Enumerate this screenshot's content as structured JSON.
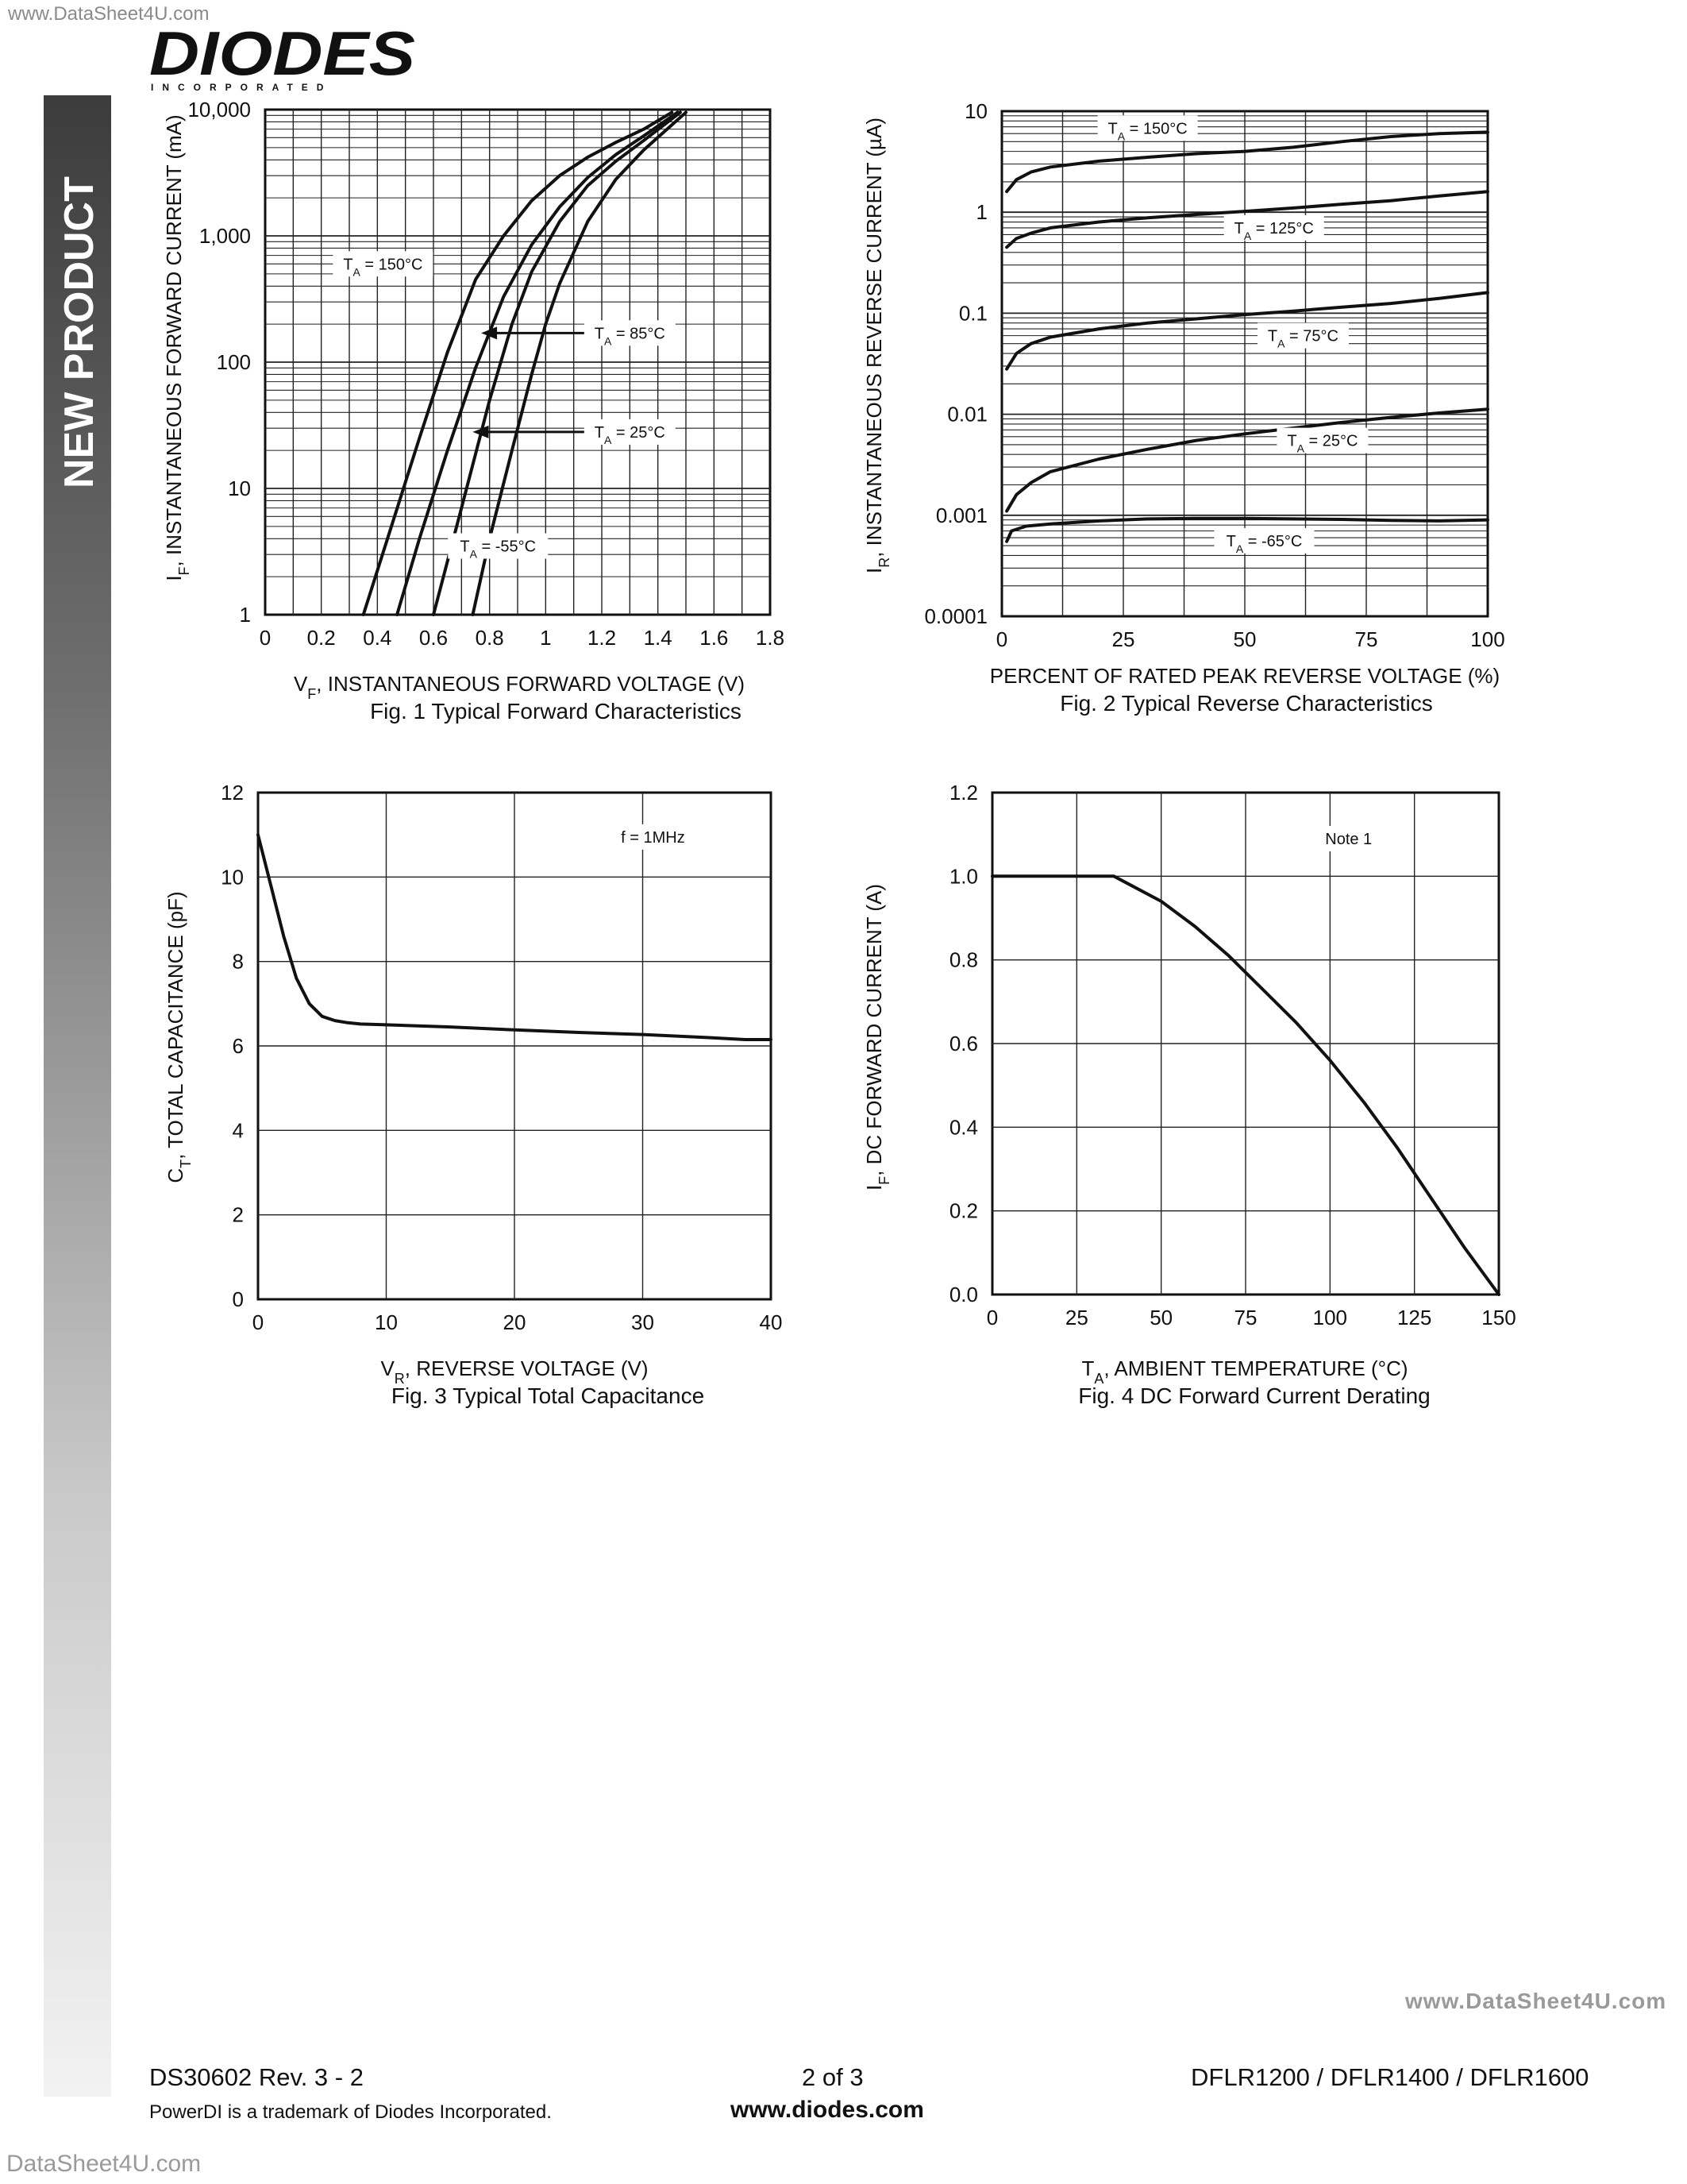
{
  "watermark_top": "www.DataSheet4U.com",
  "logo": {
    "name": "DIODES",
    "sub": "INCORPORATED"
  },
  "sidebar": {
    "label": "NEW PRODUCT"
  },
  "chart_data": [
    {
      "type": "line",
      "ylog": true,
      "xlabel_main": "V",
      "xlabel_sub": "F",
      "xlabel_rest": ", INSTANTANEOUS FORWARD VOLTAGE (V)",
      "ylabel_main": "I",
      "ylabel_sub": "F",
      "ylabel_rest": ", INSTANTANEOUS FORWARD CURRENT (mA)",
      "caption": "Fig. 1  Typical Forward Characteristics",
      "xlim": [
        0,
        1.8
      ],
      "ylim": [
        1,
        10000
      ],
      "xticks": [
        0,
        0.2,
        0.4,
        0.6,
        0.8,
        1,
        1.2,
        1.4,
        1.6,
        1.8
      ],
      "xticklabels": [
        "0",
        "0.2",
        "0.4",
        "0.6",
        "0.8",
        "1",
        "1.2",
        "1.4",
        "1.6",
        "1.8"
      ],
      "yticks": [
        1,
        10,
        100,
        1000,
        10000
      ],
      "yticklabels": [
        "1",
        "10",
        "100",
        "1,000",
        "10,000"
      ],
      "series": [
        {
          "name": "T = 150°C",
          "x": [
            0.35,
            0.45,
            0.55,
            0.65,
            0.75,
            0.85,
            0.95,
            1.05,
            1.15,
            1.25,
            1.35,
            1.45
          ],
          "y": [
            1,
            5,
            25,
            120,
            450,
            1000,
            1900,
            3000,
            4200,
            5500,
            7000,
            9500
          ]
        },
        {
          "name": "T = 85°C",
          "x": [
            0.47,
            0.55,
            0.65,
            0.75,
            0.85,
            0.95,
            1.05,
            1.15,
            1.25,
            1.35,
            1.47
          ],
          "y": [
            1,
            4,
            20,
            90,
            330,
            850,
            1700,
            2900,
            4400,
            6200,
            9500
          ]
        },
        {
          "name": "T = 25°C",
          "x": [
            0.6,
            0.7,
            0.8,
            0.88,
            0.95,
            1.05,
            1.15,
            1.25,
            1.35,
            1.48
          ],
          "y": [
            1,
            7,
            50,
            200,
            520,
            1300,
            2500,
            3900,
            5700,
            9500
          ]
        },
        {
          "name": "T = -55°C",
          "x": [
            0.74,
            0.8,
            0.88,
            0.95,
            1.0,
            1.05,
            1.15,
            1.25,
            1.35,
            1.5
          ],
          "y": [
            1,
            4,
            20,
            80,
            200,
            420,
            1300,
            2800,
            4800,
            9500
          ]
        }
      ],
      "annotations": [
        {
          "label_main": "T",
          "label_sub": "A",
          "label_rest": " = 150°C",
          "x": 0.42,
          "y": 600
        },
        {
          "label_main": "T",
          "label_sub": "A",
          "label_rest": " = 85°C",
          "x": 1.3,
          "y": 170
        },
        {
          "label_main": "T",
          "label_sub": "A",
          "label_rest": " = 25°C",
          "x": 1.3,
          "y": 28
        },
        {
          "label_main": "T",
          "label_sub": "A",
          "label_rest": " = -55°C",
          "x": 0.83,
          "y": 3.5
        }
      ],
      "arrows": [
        {
          "from": [
            1.37,
            170
          ],
          "to": [
            0.77,
            170
          ]
        },
        {
          "from": [
            1.37,
            28
          ],
          "to": [
            0.74,
            28
          ]
        }
      ]
    },
    {
      "type": "line",
      "ylog": true,
      "xlabel_main": "PERCENT OF RATED PEAK REVERSE VOLTAGE (%)",
      "xlabel_sub": "",
      "xlabel_rest": "",
      "ylabel_main": "I",
      "ylabel_sub": "R",
      "ylabel_rest": ", INSTANTANEOUS REVERSE CURRENT (µA)",
      "caption": "Fig. 2  Typical Reverse Characteristics",
      "xlim": [
        0,
        100
      ],
      "ylim": [
        0.0001,
        10
      ],
      "xticks": [
        0,
        25,
        50,
        75,
        100
      ],
      "xticklabels": [
        "0",
        "25",
        "50",
        "75",
        "100"
      ],
      "yticks": [
        0.0001,
        0.001,
        0.01,
        0.1,
        1,
        10
      ],
      "yticklabels": [
        "0.0001",
        "0.001",
        "0.01",
        "0.1",
        "1",
        "10"
      ],
      "series": [
        {
          "name": "T = 150°C",
          "x": [
            1,
            3,
            6,
            10,
            20,
            30,
            40,
            50,
            60,
            70,
            80,
            90,
            100
          ],
          "y": [
            1.6,
            2.1,
            2.5,
            2.8,
            3.2,
            3.5,
            3.8,
            4.0,
            4.4,
            5.0,
            5.6,
            6.0,
            6.2
          ]
        },
        {
          "name": "T = 125°C",
          "x": [
            1,
            3,
            6,
            10,
            20,
            30,
            40,
            50,
            60,
            70,
            80,
            90,
            100
          ],
          "y": [
            0.45,
            0.55,
            0.62,
            0.7,
            0.8,
            0.88,
            0.95,
            1.02,
            1.1,
            1.2,
            1.3,
            1.45,
            1.6
          ]
        },
        {
          "name": "T = 75°C",
          "x": [
            1,
            3,
            6,
            10,
            20,
            30,
            40,
            50,
            60,
            70,
            80,
            90,
            100
          ],
          "y": [
            0.028,
            0.04,
            0.05,
            0.058,
            0.07,
            0.08,
            0.088,
            0.097,
            0.105,
            0.115,
            0.125,
            0.14,
            0.16
          ]
        },
        {
          "name": "T = 25°C",
          "x": [
            1,
            3,
            6,
            10,
            20,
            30,
            40,
            50,
            60,
            70,
            80,
            90,
            100
          ],
          "y": [
            0.0011,
            0.0016,
            0.0021,
            0.0027,
            0.0036,
            0.0045,
            0.0055,
            0.0064,
            0.0073,
            0.0083,
            0.0093,
            0.0103,
            0.0112
          ]
        },
        {
          "name": "T = -65°C",
          "x": [
            1,
            2,
            5,
            10,
            20,
            30,
            40,
            50,
            60,
            70,
            80,
            90,
            100
          ],
          "y": [
            0.00055,
            0.0007,
            0.00078,
            0.00082,
            0.00088,
            0.00092,
            0.00093,
            0.00093,
            0.00092,
            0.00091,
            0.00089,
            0.00088,
            0.0009
          ]
        }
      ],
      "annotations": [
        {
          "label_main": "T",
          "label_sub": "A",
          "label_rest": " = 150°C",
          "x": 30,
          "y": 6.8
        },
        {
          "label_main": "T",
          "label_sub": "A",
          "label_rest": " = 125°C",
          "x": 56,
          "y": 0.7
        },
        {
          "label_main": "T",
          "label_sub": "A",
          "label_rest": " = 75°C",
          "x": 62,
          "y": 0.06
        },
        {
          "label_main": "T",
          "label_sub": "A",
          "label_rest": " = 25°C",
          "x": 66,
          "y": 0.0055
        },
        {
          "label_main": "T",
          "label_sub": "A",
          "label_rest": " = -65°C",
          "x": 54,
          "y": 0.00056
        }
      ],
      "arrows": []
    },
    {
      "type": "line",
      "ylog": false,
      "xlabel_main": "V",
      "xlabel_sub": "R",
      "xlabel_rest": ", REVERSE VOLTAGE (V)",
      "ylabel_main": "C",
      "ylabel_sub": "T",
      "ylabel_rest": ", TOTAL CAPACITANCE (pF)",
      "caption": "Fig. 3  Typical Total Capacitance",
      "xlim": [
        0,
        40
      ],
      "ylim": [
        0,
        12
      ],
      "xticks": [
        0,
        10,
        20,
        30,
        40
      ],
      "xticklabels": [
        "0",
        "10",
        "20",
        "30",
        "40"
      ],
      "yticks": [
        0,
        2,
        4,
        6,
        8,
        10,
        12
      ],
      "yticklabels": [
        "0",
        "2",
        "4",
        "6",
        "8",
        "10",
        "12"
      ],
      "series": [
        {
          "name": "",
          "x": [
            0,
            1,
            2,
            3,
            4,
            5,
            6,
            7,
            8,
            10,
            15,
            20,
            25,
            30,
            35,
            38,
            40
          ],
          "y": [
            11,
            9.8,
            8.6,
            7.6,
            7.0,
            6.7,
            6.6,
            6.55,
            6.52,
            6.5,
            6.45,
            6.38,
            6.32,
            6.27,
            6.2,
            6.15,
            6.15
          ]
        }
      ],
      "annotations": [
        {
          "label_main": "f = 1MHz",
          "label_sub": "",
          "label_rest": "",
          "x": 30.8,
          "y": 10.95
        }
      ],
      "arrows": []
    },
    {
      "type": "line",
      "ylog": false,
      "xlabel_main": "T",
      "xlabel_sub": "A",
      "xlabel_rest": ", AMBIENT TEMPERATURE (°C)",
      "ylabel_main": "I",
      "ylabel_sub": "F",
      "ylabel_rest": ", DC FORWARD CURRENT (A)",
      "caption": "Fig. 4  DC Forward Current Derating",
      "xlim": [
        0,
        150
      ],
      "ylim": [
        0,
        1.2
      ],
      "xticks": [
        0,
        25,
        50,
        75,
        100,
        125,
        150
      ],
      "xticklabels": [
        "0",
        "25",
        "50",
        "75",
        "100",
        "125",
        "150"
      ],
      "yticks": [
        0,
        0.2,
        0.4,
        0.6,
        0.8,
        1.0,
        1.2
      ],
      "yticklabels": [
        "0.0",
        "0.2",
        "0.4",
        "0.6",
        "0.8",
        "1.0",
        "1.2"
      ],
      "series": [
        {
          "name": "",
          "x": [
            0,
            36,
            50,
            60,
            70,
            80,
            90,
            100,
            110,
            120,
            130,
            140,
            150
          ],
          "y": [
            1.0,
            1.0,
            0.94,
            0.88,
            0.81,
            0.73,
            0.65,
            0.56,
            0.46,
            0.35,
            0.23,
            0.11,
            0.0
          ]
        }
      ],
      "annotations": [
        {
          "label_main": "Note 1",
          "label_sub": "",
          "label_rest": "",
          "x": 105.5,
          "y": 1.09
        }
      ],
      "arrows": []
    }
  ],
  "watermark_right": "www.DataSheet4U.com",
  "footer": {
    "doc_number": "DS30602 Rev. 3 - 2",
    "page": "2 of 3",
    "parts": "DFLR1200 / DFLR1400 / DFLR1600",
    "trademark": "PowerDI is a trademark of Diodes Incorporated.",
    "url": "www.diodes.com"
  },
  "watermark_bottom": "DataSheet4U.com"
}
